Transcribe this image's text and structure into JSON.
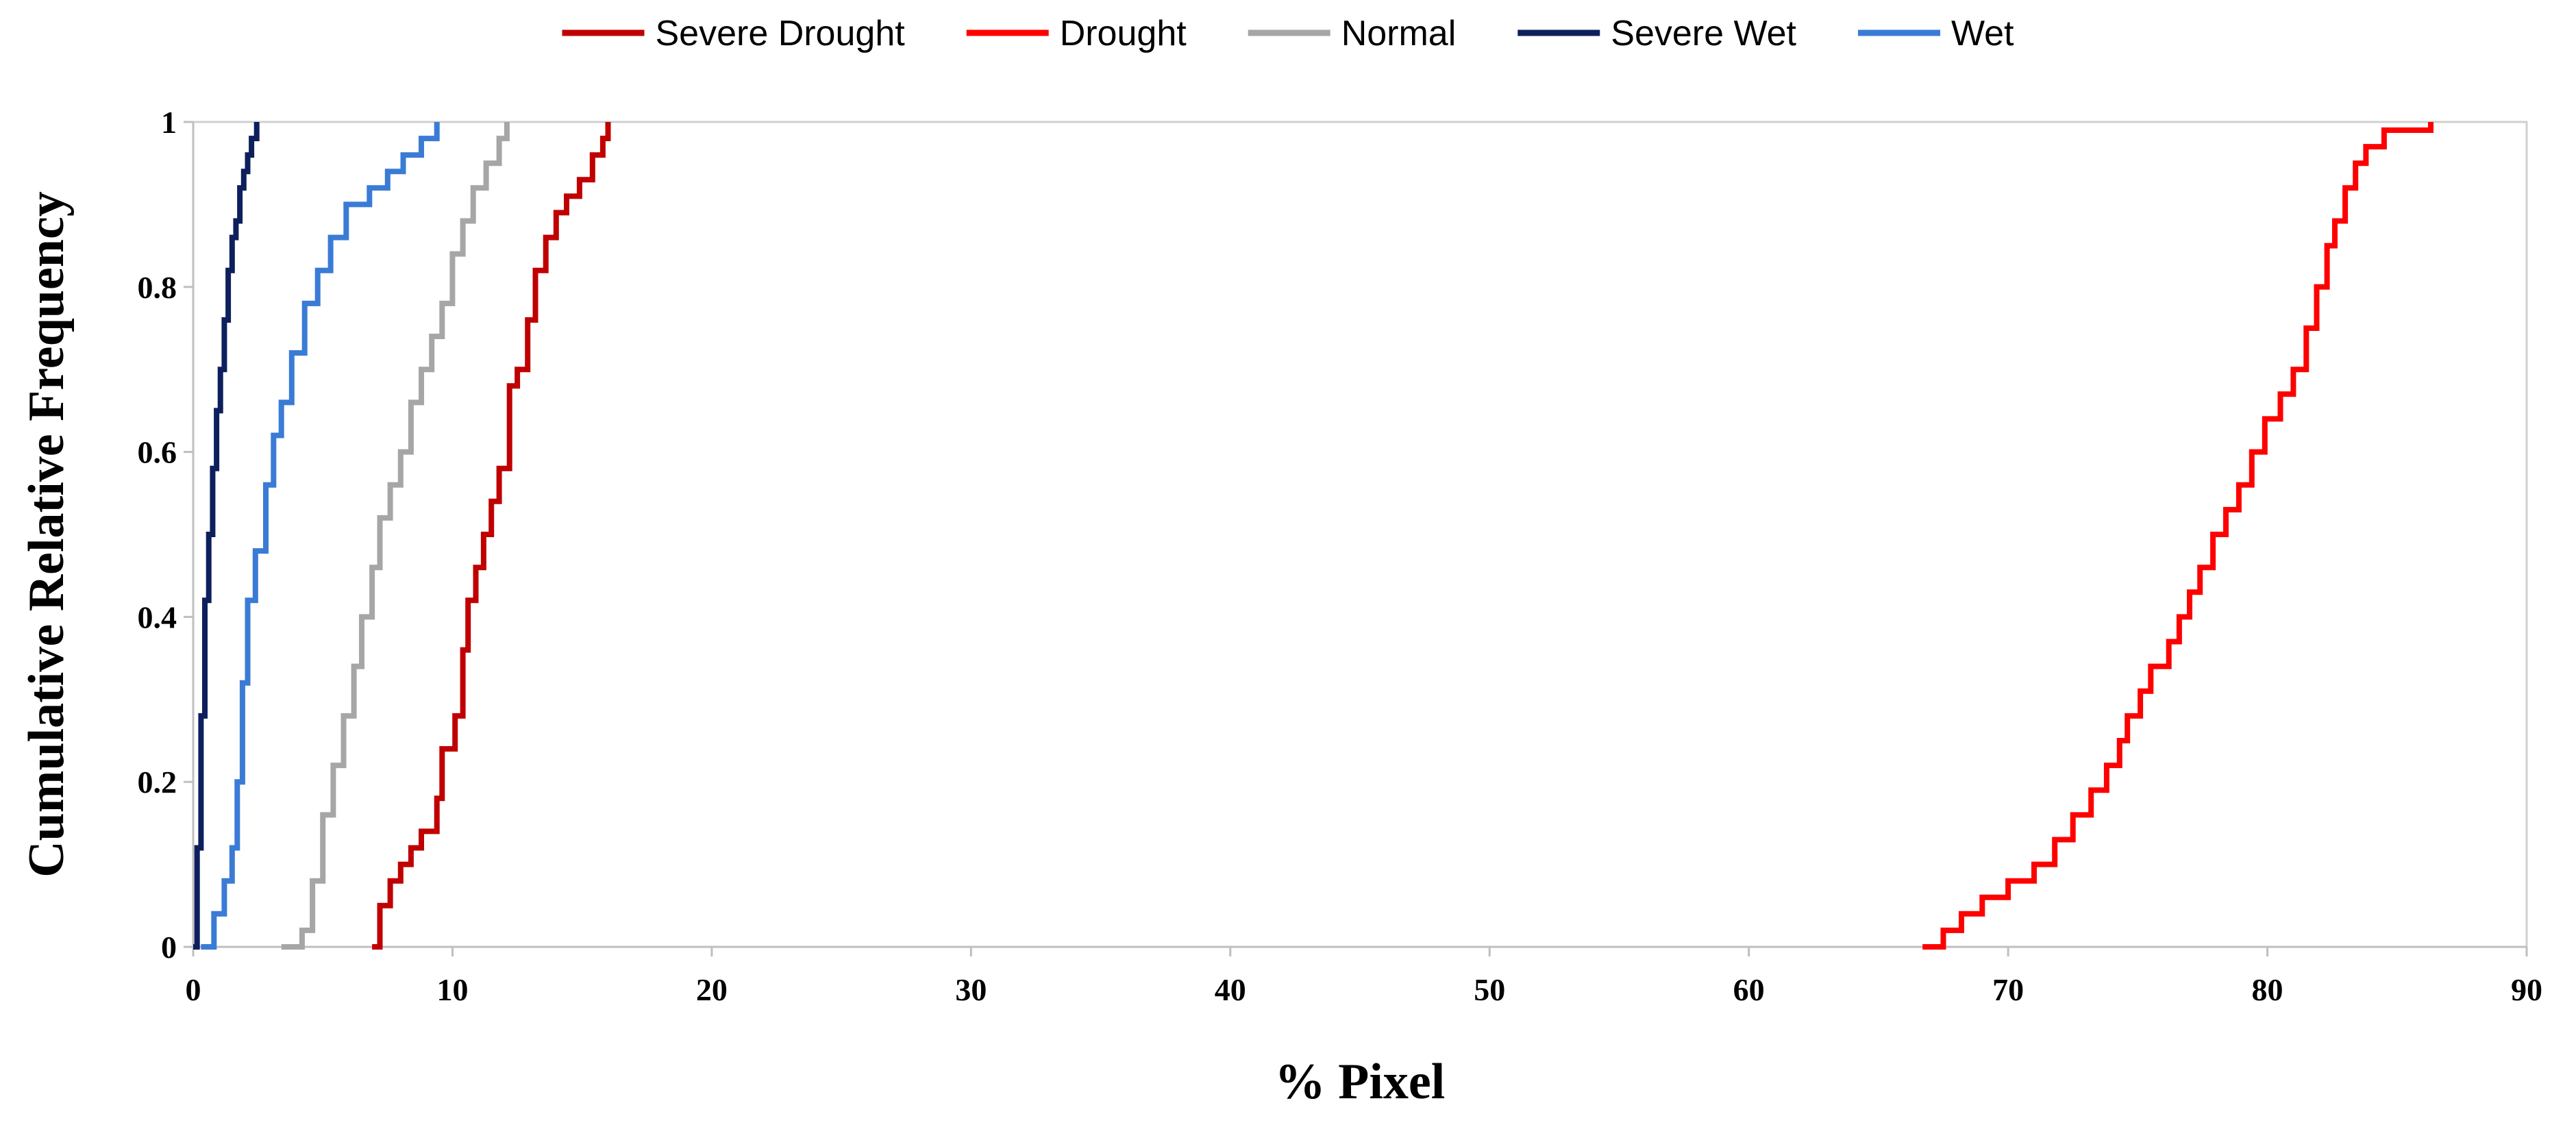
{
  "chart_data": {
    "type": "line",
    "title": "",
    "xlabel": "% Pixel",
    "ylabel": "Cumulative  Relative Frequency",
    "xlim": [
      0,
      90
    ],
    "ylim": [
      0,
      1
    ],
    "xticks": [
      0,
      10,
      20,
      30,
      40,
      50,
      60,
      70,
      80,
      90
    ],
    "yticks": [
      0,
      0.2,
      0.4,
      0.6,
      0.8,
      1
    ],
    "ytick_labels": [
      "0",
      "0.2",
      "0.4",
      "0.6",
      "0.8",
      "1"
    ],
    "grid": false,
    "legend_position": "top",
    "series": [
      {
        "name": "Severe Drought",
        "color": "#c00000",
        "x": [
          6.9,
          7.2,
          7.6,
          8.0,
          8.4,
          8.8,
          9.4,
          9.6,
          10.1,
          10.4,
          10.6,
          10.9,
          11.2,
          11.5,
          11.8,
          12.2,
          12.5,
          12.9,
          13.2,
          13.6,
          14.0,
          14.4,
          14.9,
          15.4,
          15.8,
          16.0
        ],
        "y": [
          0.0,
          0.05,
          0.08,
          0.1,
          0.12,
          0.14,
          0.18,
          0.24,
          0.28,
          0.36,
          0.42,
          0.46,
          0.5,
          0.54,
          0.58,
          0.68,
          0.7,
          0.76,
          0.82,
          0.86,
          0.89,
          0.91,
          0.93,
          0.96,
          0.98,
          1.0
        ]
      },
      {
        "name": "Drought",
        "color": "#ff0000",
        "x": [
          66.7,
          67.5,
          68.2,
          69.0,
          70.0,
          71.0,
          71.8,
          72.5,
          73.2,
          73.8,
          74.3,
          74.6,
          75.1,
          75.5,
          76.2,
          76.6,
          77.0,
          77.4,
          77.9,
          78.4,
          78.9,
          79.4,
          79.9,
          80.5,
          81.0,
          81.5,
          81.9,
          82.3,
          82.6,
          83.0,
          83.4,
          83.8,
          84.5,
          86.3
        ],
        "y": [
          0.0,
          0.02,
          0.04,
          0.06,
          0.08,
          0.1,
          0.13,
          0.16,
          0.19,
          0.22,
          0.25,
          0.28,
          0.31,
          0.34,
          0.37,
          0.4,
          0.43,
          0.46,
          0.5,
          0.53,
          0.56,
          0.6,
          0.64,
          0.67,
          0.7,
          0.75,
          0.8,
          0.85,
          0.88,
          0.92,
          0.95,
          0.97,
          0.99,
          1.0
        ]
      },
      {
        "name": "Normal",
        "color": "#a6a6a6",
        "x": [
          3.4,
          4.2,
          4.6,
          5.0,
          5.4,
          5.8,
          6.2,
          6.5,
          6.9,
          7.2,
          7.6,
          8.0,
          8.4,
          8.8,
          9.2,
          9.6,
          10.0,
          10.4,
          10.8,
          11.3,
          11.8,
          12.1
        ],
        "y": [
          0.0,
          0.02,
          0.08,
          0.16,
          0.22,
          0.28,
          0.34,
          0.4,
          0.46,
          0.52,
          0.56,
          0.6,
          0.66,
          0.7,
          0.74,
          0.78,
          0.84,
          0.88,
          0.92,
          0.95,
          0.98,
          1.0
        ]
      },
      {
        "name": "Severe Wet",
        "color": "#0d1f5c",
        "x": [
          0.0,
          0.15,
          0.3,
          0.45,
          0.6,
          0.75,
          0.9,
          1.05,
          1.2,
          1.35,
          1.5,
          1.65,
          1.8,
          1.95,
          2.1,
          2.25,
          2.45
        ],
        "y": [
          0.0,
          0.12,
          0.28,
          0.42,
          0.5,
          0.58,
          0.65,
          0.7,
          0.76,
          0.82,
          0.86,
          0.88,
          0.92,
          0.94,
          0.96,
          0.98,
          1.0
        ]
      },
      {
        "name": "Wet",
        "color": "#3a7bd5",
        "x": [
          0.3,
          0.8,
          1.2,
          1.5,
          1.7,
          1.9,
          2.1,
          2.4,
          2.8,
          3.1,
          3.4,
          3.8,
          4.3,
          4.8,
          5.3,
          5.9,
          6.8,
          7.5,
          8.1,
          8.8,
          9.4
        ],
        "y": [
          0.0,
          0.04,
          0.08,
          0.12,
          0.2,
          0.32,
          0.42,
          0.48,
          0.56,
          0.62,
          0.66,
          0.72,
          0.78,
          0.82,
          0.86,
          0.9,
          0.92,
          0.94,
          0.96,
          0.98,
          1.0
        ]
      }
    ]
  }
}
